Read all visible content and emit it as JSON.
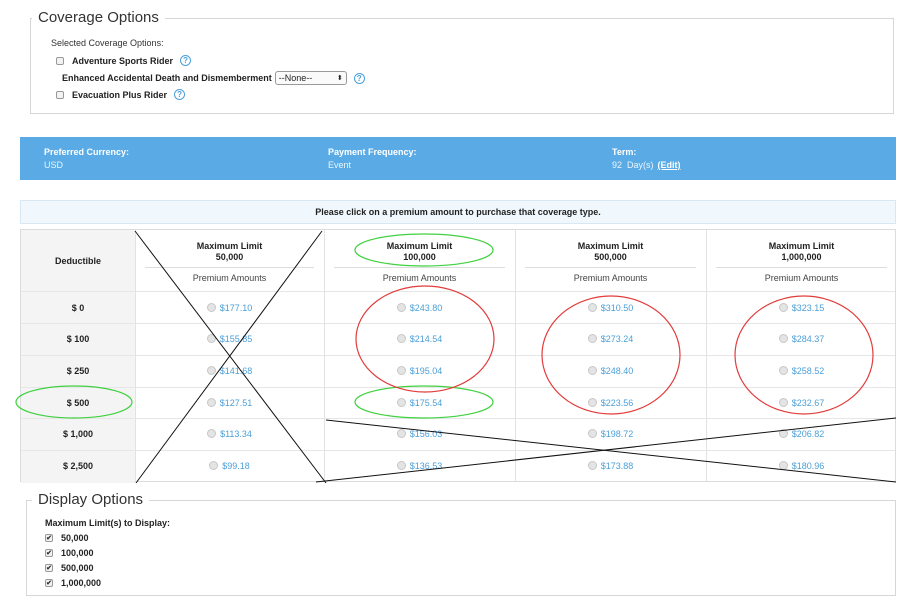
{
  "coverage": {
    "legend": "Coverage Options",
    "selected_label": "Selected Coverage Options:",
    "adventure_label": "Adventure Sports Rider",
    "add_label": "Enhanced Accidental Death and Dismemberment",
    "add_select_value": "--None--",
    "evac_label": "Evacuation Plus Rider",
    "help_glyph": "?"
  },
  "summary": {
    "currency_label": "Preferred Currency:",
    "currency_value": "USD",
    "frequency_label": "Payment Frequency:",
    "frequency_value": "Event",
    "term_label": "Term:",
    "term_value": "92  Day(s)",
    "edit_label": "(Edit)"
  },
  "instruction": "Please click on a premium amount to purchase that coverage type.",
  "table": {
    "deductible_header": "Deductible",
    "columns": [
      {
        "title": "Maximum Limit",
        "limit": "50,000",
        "sub": "Premium Amounts"
      },
      {
        "title": "Maximum Limit",
        "limit": "100,000",
        "sub": "Premium Amounts"
      },
      {
        "title": "Maximum Limit",
        "limit": "500,000",
        "sub": "Premium Amounts"
      },
      {
        "title": "Maximum Limit",
        "limit": "1,000,000",
        "sub": "Premium Amounts"
      }
    ],
    "rows": [
      {
        "deductible": "$ 0",
        "prices": [
          "$177.10",
          "$243.80",
          "$310.50",
          "$323.15"
        ]
      },
      {
        "deductible": "$ 100",
        "prices": [
          "$155.85",
          "$214.54",
          "$273.24",
          "$284.37"
        ]
      },
      {
        "deductible": "$ 250",
        "prices": [
          "$141.68",
          "$195.04",
          "$248.40",
          "$258.52"
        ]
      },
      {
        "deductible": "$ 500",
        "prices": [
          "$127.51",
          "$175.54",
          "$223.56",
          "$232.67"
        ]
      },
      {
        "deductible": "$ 1,000",
        "prices": [
          "$113.34",
          "$156.03",
          "$198.72",
          "$206.82"
        ]
      },
      {
        "deductible": "$ 2,500",
        "prices": [
          "$99.18",
          "$136.53",
          "$173.88",
          "$180.96"
        ]
      }
    ]
  },
  "display": {
    "legend": "Display Options",
    "heading": "Maximum Limit(s) to Display:",
    "options": [
      "50,000",
      "100,000",
      "500,000",
      "1,000,000"
    ],
    "check_glyph": "✔"
  },
  "annotation_colors": {
    "red": "#e23b3b",
    "green": "#3fd13f",
    "black": "#111111"
  }
}
